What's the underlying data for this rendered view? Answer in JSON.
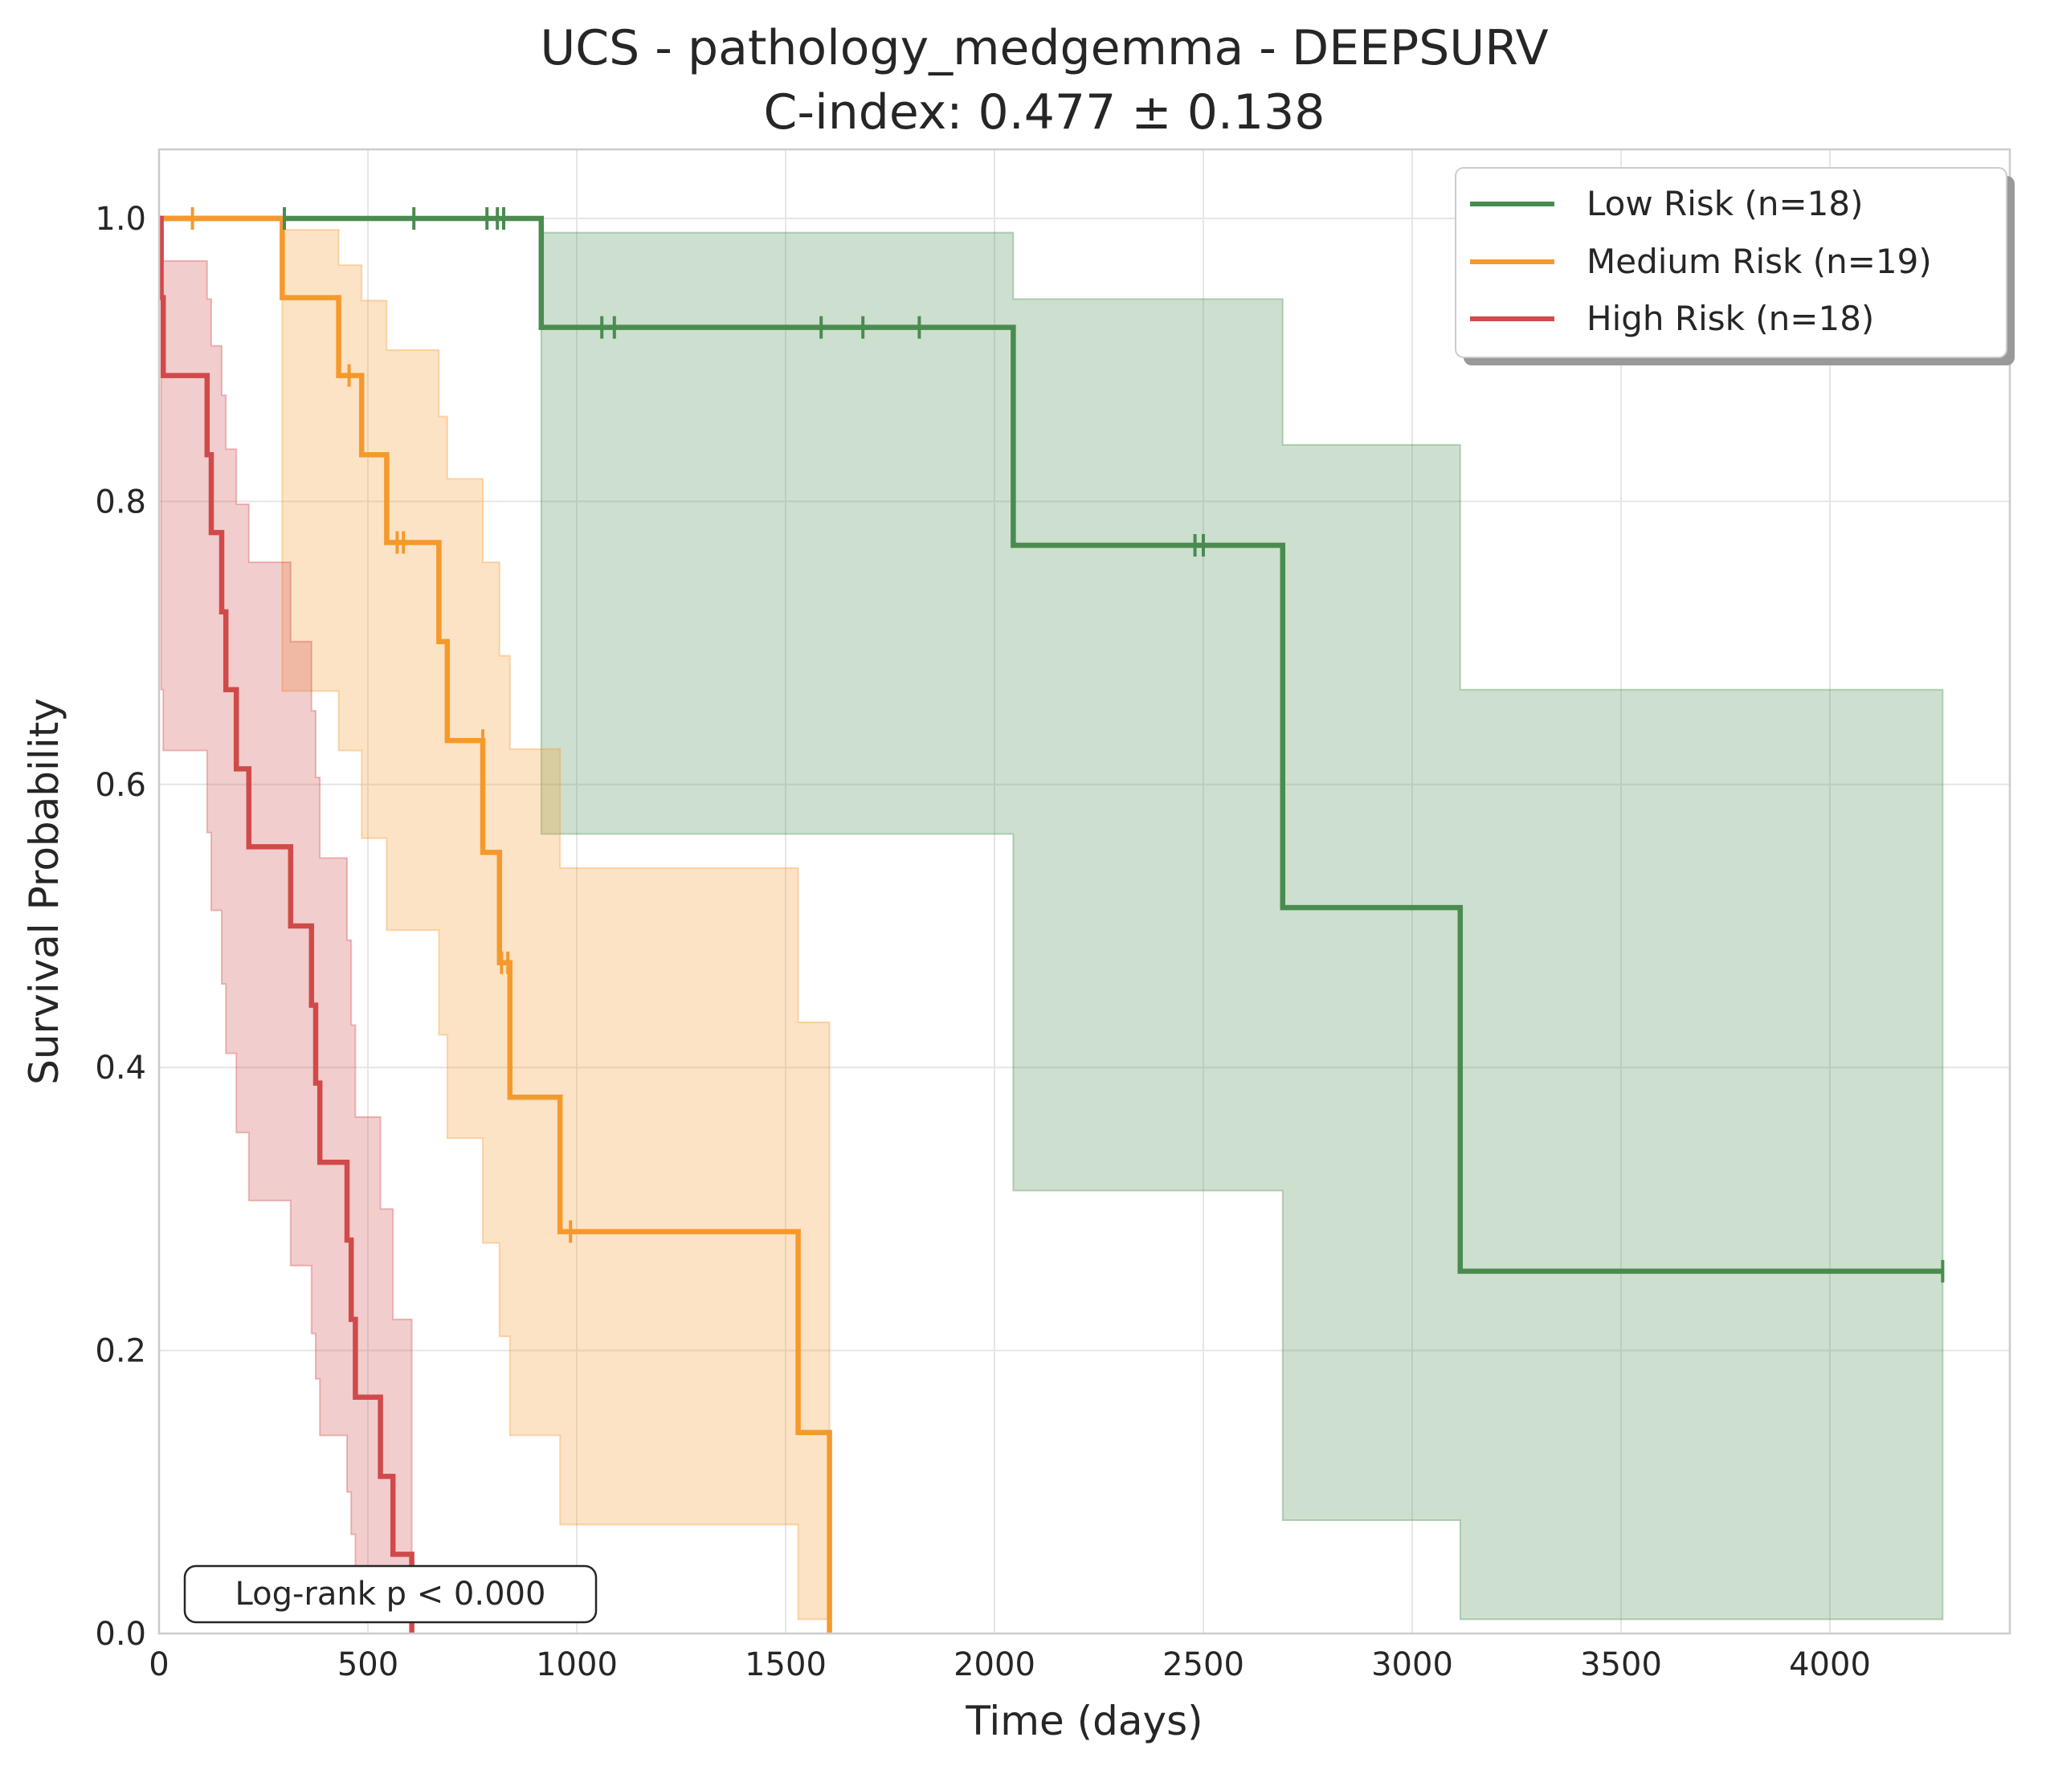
{
  "chart_data": {
    "type": "line",
    "subtype": "kaplan-meier",
    "title": "UCS - pathology_medgemma - DEEPSURV",
    "subtitle": "C-index: 0.477 ± 0.138",
    "xlabel": "Time (days)",
    "ylabel": "Survival Probability",
    "xlim": [
      0,
      4500
    ],
    "ylim": [
      0,
      1.05
    ],
    "xticks": [
      0,
      500,
      1000,
      1500,
      2000,
      2500,
      3000,
      3500,
      4000
    ],
    "yticks": [
      0.0,
      0.2,
      0.4,
      0.6,
      0.8,
      1.0
    ],
    "grid": true,
    "legend_position": "top-right",
    "annotation": "Log-rank p < 0.000",
    "series": [
      {
        "name": "Low Risk (n=18)",
        "color": "#4a8c4f",
        "steps": [
          [
            0,
            1.0
          ],
          [
            915,
            0.923
          ],
          [
            2045,
            0.769
          ],
          [
            2690,
            0.513
          ],
          [
            3115,
            0.256
          ],
          [
            4270,
            0.256
          ]
        ],
        "ci_steps": [
          [
            0,
            1.0,
            1.0
          ],
          [
            915,
            0.565,
            0.99
          ],
          [
            2045,
            0.313,
            0.943
          ],
          [
            2690,
            0.08,
            0.84
          ],
          [
            3115,
            0.01,
            0.667
          ],
          [
            4270,
            0.01,
            0.667
          ]
        ],
        "censored": [
          [
            300,
            1.0
          ],
          [
            610,
            1.0
          ],
          [
            785,
            1.0
          ],
          [
            810,
            1.0
          ],
          [
            825,
            1.0
          ],
          [
            1060,
            0.923
          ],
          [
            1090,
            0.923
          ],
          [
            1585,
            0.923
          ],
          [
            1685,
            0.923
          ],
          [
            1820,
            0.923
          ],
          [
            2480,
            0.769
          ],
          [
            2500,
            0.769
          ],
          [
            4270,
            0.256
          ]
        ]
      },
      {
        "name": "Medium Risk (n=19)",
        "color": "#f5992d",
        "steps": [
          [
            0,
            1.0
          ],
          [
            295,
            0.944
          ],
          [
            430,
            0.889
          ],
          [
            485,
            0.833
          ],
          [
            545,
            0.771
          ],
          [
            670,
            0.701
          ],
          [
            690,
            0.631
          ],
          [
            775,
            0.552
          ],
          [
            815,
            0.474
          ],
          [
            840,
            0.379
          ],
          [
            960,
            0.284
          ],
          [
            1530,
            0.142
          ],
          [
            1605,
            0.0
          ]
        ],
        "ci_steps": [
          [
            0,
            1.0,
            1.0
          ],
          [
            295,
            0.666,
            0.992
          ],
          [
            430,
            0.624,
            0.967
          ],
          [
            485,
            0.562,
            0.942
          ],
          [
            545,
            0.497,
            0.907
          ],
          [
            670,
            0.423,
            0.86
          ],
          [
            690,
            0.35,
            0.816
          ],
          [
            775,
            0.276,
            0.757
          ],
          [
            815,
            0.21,
            0.691
          ],
          [
            840,
            0.14,
            0.625
          ],
          [
            960,
            0.077,
            0.541
          ],
          [
            1530,
            0.01,
            0.432
          ],
          [
            1605,
            0.0,
            0.0
          ]
        ],
        "censored": [
          [
            80,
            1.0
          ],
          [
            455,
            0.889
          ],
          [
            570,
            0.771
          ],
          [
            585,
            0.771
          ],
          [
            775,
            0.631
          ],
          [
            820,
            0.474
          ],
          [
            835,
            0.474
          ],
          [
            985,
            0.284
          ]
        ]
      },
      {
        "name": "High Risk (n=18)",
        "color": "#d04a4a",
        "steps": [
          [
            0,
            1.0
          ],
          [
            5,
            0.944
          ],
          [
            10,
            0.889
          ],
          [
            115,
            0.833
          ],
          [
            125,
            0.778
          ],
          [
            150,
            0.722
          ],
          [
            160,
            0.667
          ],
          [
            185,
            0.611
          ],
          [
            215,
            0.556
          ],
          [
            315,
            0.5
          ],
          [
            365,
            0.444
          ],
          [
            375,
            0.389
          ],
          [
            385,
            0.333
          ],
          [
            450,
            0.278
          ],
          [
            460,
            0.222
          ],
          [
            470,
            0.167
          ],
          [
            530,
            0.111
          ],
          [
            560,
            0.056
          ],
          [
            605,
            0.0
          ]
        ],
        "ci_steps": [
          [
            0,
            1.0,
            1.0
          ],
          [
            5,
            0.667,
            0.992
          ],
          [
            10,
            0.624,
            0.97
          ],
          [
            115,
            0.566,
            0.943
          ],
          [
            125,
            0.511,
            0.91
          ],
          [
            150,
            0.459,
            0.875
          ],
          [
            160,
            0.41,
            0.837
          ],
          [
            185,
            0.354,
            0.798
          ],
          [
            215,
            0.306,
            0.757
          ],
          [
            315,
            0.26,
            0.701
          ],
          [
            365,
            0.212,
            0.652
          ],
          [
            375,
            0.18,
            0.605
          ],
          [
            385,
            0.14,
            0.548
          ],
          [
            450,
            0.1,
            0.49
          ],
          [
            460,
            0.07,
            0.43
          ],
          [
            470,
            0.04,
            0.365
          ],
          [
            530,
            0.02,
            0.3
          ],
          [
            560,
            0.01,
            0.222
          ],
          [
            605,
            0.0,
            0.0
          ]
        ],
        "censored": []
      }
    ]
  }
}
